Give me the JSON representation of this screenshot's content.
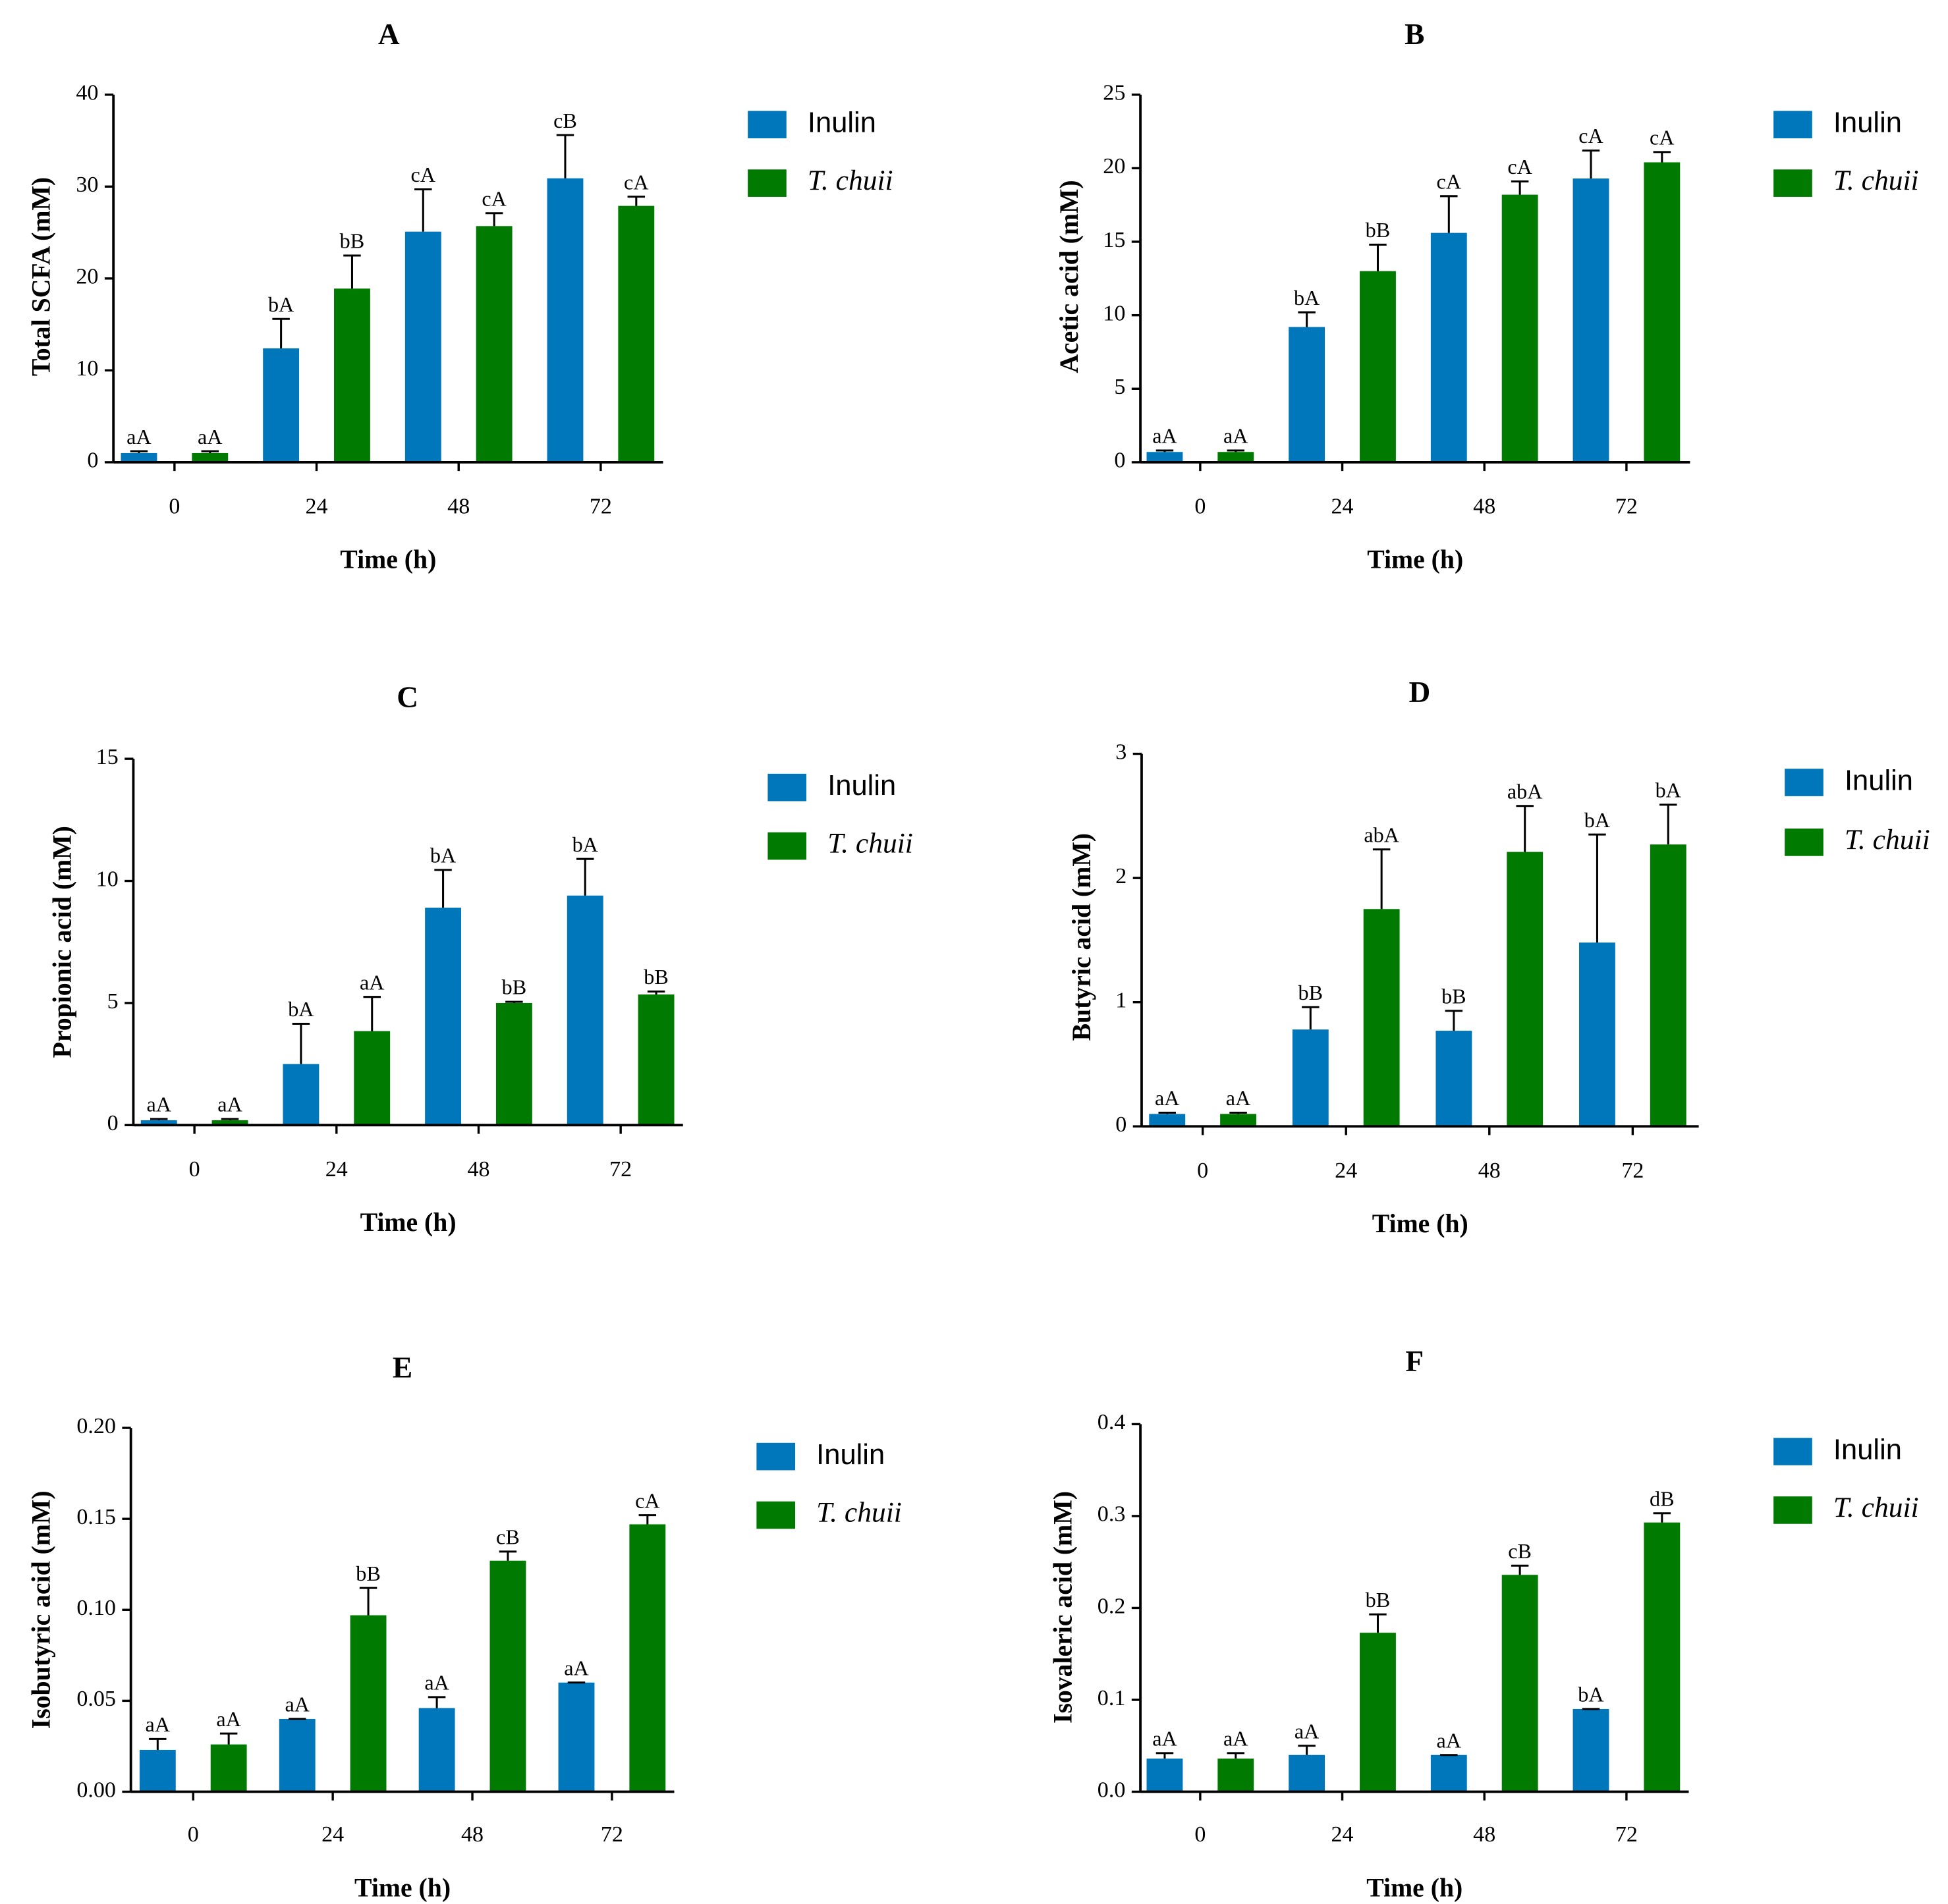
{
  "colors": {
    "inulin": "#0077bb",
    "t_chuii": "#007a00",
    "axis": "#000000"
  },
  "chart_data": [
    {
      "panel": "A",
      "type": "bar",
      "title": "A",
      "xlabel": "Time (h)",
      "ylabel": "Total SCFA (mM)",
      "categories": [
        "0",
        "24",
        "48",
        "72"
      ],
      "ylim": [
        0,
        40
      ],
      "yticks": [
        0,
        10,
        20,
        30,
        40
      ],
      "ytick_labels": [
        "0",
        "10",
        "20",
        "30",
        "40"
      ],
      "series": [
        {
          "name": "Inulin",
          "values": [
            1.0,
            12.4,
            25.1,
            30.9
          ],
          "errors": [
            0.2,
            3.2,
            4.6,
            4.7
          ],
          "labels": [
            "aA",
            "bA",
            "cA",
            "cB"
          ]
        },
        {
          "name": "T. chuii",
          "values": [
            1.0,
            18.9,
            25.7,
            27.9
          ],
          "errors": [
            0.2,
            3.6,
            1.4,
            1.0
          ],
          "labels": [
            "aA",
            "bB",
            "cA",
            "cA"
          ]
        }
      ]
    },
    {
      "panel": "B",
      "type": "bar",
      "title": "B",
      "xlabel": "Time (h)",
      "ylabel": "Acetic acid (mM)",
      "categories": [
        "0",
        "24",
        "48",
        "72"
      ],
      "ylim": [
        0,
        25
      ],
      "yticks": [
        0,
        5,
        10,
        15,
        20,
        25
      ],
      "ytick_labels": [
        "0",
        "5",
        "10",
        "15",
        "20",
        "25"
      ],
      "series": [
        {
          "name": "Inulin",
          "values": [
            0.7,
            9.2,
            15.6,
            19.3
          ],
          "errors": [
            0.1,
            1.0,
            2.5,
            1.9
          ],
          "labels": [
            "aA",
            "bA",
            "cA",
            "cA"
          ]
        },
        {
          "name": "T. chuii",
          "values": [
            0.7,
            13.0,
            18.2,
            20.4
          ],
          "errors": [
            0.1,
            1.8,
            0.9,
            0.7
          ],
          "labels": [
            "aA",
            "bB",
            "cA",
            "cA"
          ]
        }
      ]
    },
    {
      "panel": "C",
      "type": "bar",
      "title": "C",
      "xlabel": "Time (h)",
      "ylabel": "Propionic acid (mM)",
      "categories": [
        "0",
        "24",
        "48",
        "72"
      ],
      "ylim": [
        0,
        15
      ],
      "yticks": [
        0,
        5,
        10,
        15
      ],
      "ytick_labels": [
        "0",
        "5",
        "10",
        "15"
      ],
      "series": [
        {
          "name": "Inulin",
          "values": [
            0.2,
            2.5,
            8.9,
            9.4
          ],
          "errors": [
            0.05,
            1.65,
            1.55,
            1.5
          ],
          "labels": [
            "aA",
            "bA",
            "bA",
            "bA"
          ]
        },
        {
          "name": "T. chuii",
          "values": [
            0.2,
            3.85,
            5.0,
            5.35
          ],
          "errors": [
            0.05,
            1.4,
            0.05,
            0.12
          ],
          "labels": [
            "aA",
            "aA",
            "bB",
            "bB"
          ]
        }
      ]
    },
    {
      "panel": "D",
      "type": "bar",
      "title": "D",
      "xlabel": "Time (h)",
      "ylabel": "Butyric acid (mM)",
      "categories": [
        "0",
        "24",
        "48",
        "72"
      ],
      "ylim": [
        0,
        3
      ],
      "yticks": [
        0,
        1,
        2,
        3
      ],
      "ytick_labels": [
        "0",
        "1",
        "2",
        "3"
      ],
      "series": [
        {
          "name": "Inulin",
          "values": [
            0.1,
            0.78,
            0.77,
            1.48
          ],
          "errors": [
            0.01,
            0.18,
            0.16,
            0.87
          ],
          "labels": [
            "aA",
            "bB",
            "bB",
            "bA"
          ]
        },
        {
          "name": "T. chuii",
          "values": [
            0.1,
            1.75,
            2.21,
            2.27
          ],
          "errors": [
            0.01,
            0.48,
            0.37,
            0.32
          ],
          "labels": [
            "aA",
            "abA",
            "abA",
            "bA"
          ]
        }
      ]
    },
    {
      "panel": "E",
      "type": "bar",
      "title": "E",
      "xlabel": "Time (h)",
      "ylabel": "Isobutyric acid (mM)",
      "categories": [
        "0",
        "24",
        "48",
        "72"
      ],
      "ylim": [
        0,
        0.2
      ],
      "yticks": [
        0,
        0.05,
        0.1,
        0.15,
        0.2
      ],
      "ytick_labels": [
        "0.00",
        "0.05",
        "0.10",
        "0.15",
        "0.20"
      ],
      "series": [
        {
          "name": "Inulin",
          "values": [
            0.023,
            0.04,
            0.046,
            0.06
          ],
          "errors": [
            0.006,
            0,
            0.006,
            0
          ],
          "labels": [
            "aA",
            "aA",
            "aA",
            "aA"
          ]
        },
        {
          "name": "T. chuii",
          "values": [
            0.026,
            0.097,
            0.127,
            0.147
          ],
          "errors": [
            0.006,
            0.015,
            0.005,
            0.005
          ],
          "labels": [
            "aA",
            "bB",
            "cB",
            "cA"
          ]
        }
      ]
    },
    {
      "panel": "F",
      "type": "bar",
      "title": "F",
      "xlabel": "Time (h)",
      "ylabel": "Isovaleric acid (mM)",
      "categories": [
        "0",
        "24",
        "48",
        "72"
      ],
      "ylim": [
        0,
        0.4
      ],
      "yticks": [
        0,
        0.1,
        0.2,
        0.3,
        0.4
      ],
      "ytick_labels": [
        "0.0",
        "0.1",
        "0.2",
        "0.3",
        "0.4"
      ],
      "series": [
        {
          "name": "Inulin",
          "values": [
            0.036,
            0.04,
            0.04,
            0.09
          ],
          "errors": [
            0.006,
            0.01,
            0,
            0
          ],
          "labels": [
            "aA",
            "aA",
            "aA",
            "bA"
          ]
        },
        {
          "name": "T. chuii",
          "values": [
            0.036,
            0.173,
            0.236,
            0.293
          ],
          "errors": [
            0.006,
            0.02,
            0.01,
            0.01
          ],
          "labels": [
            "aA",
            "bB",
            "cB",
            "dB"
          ]
        }
      ]
    }
  ]
}
